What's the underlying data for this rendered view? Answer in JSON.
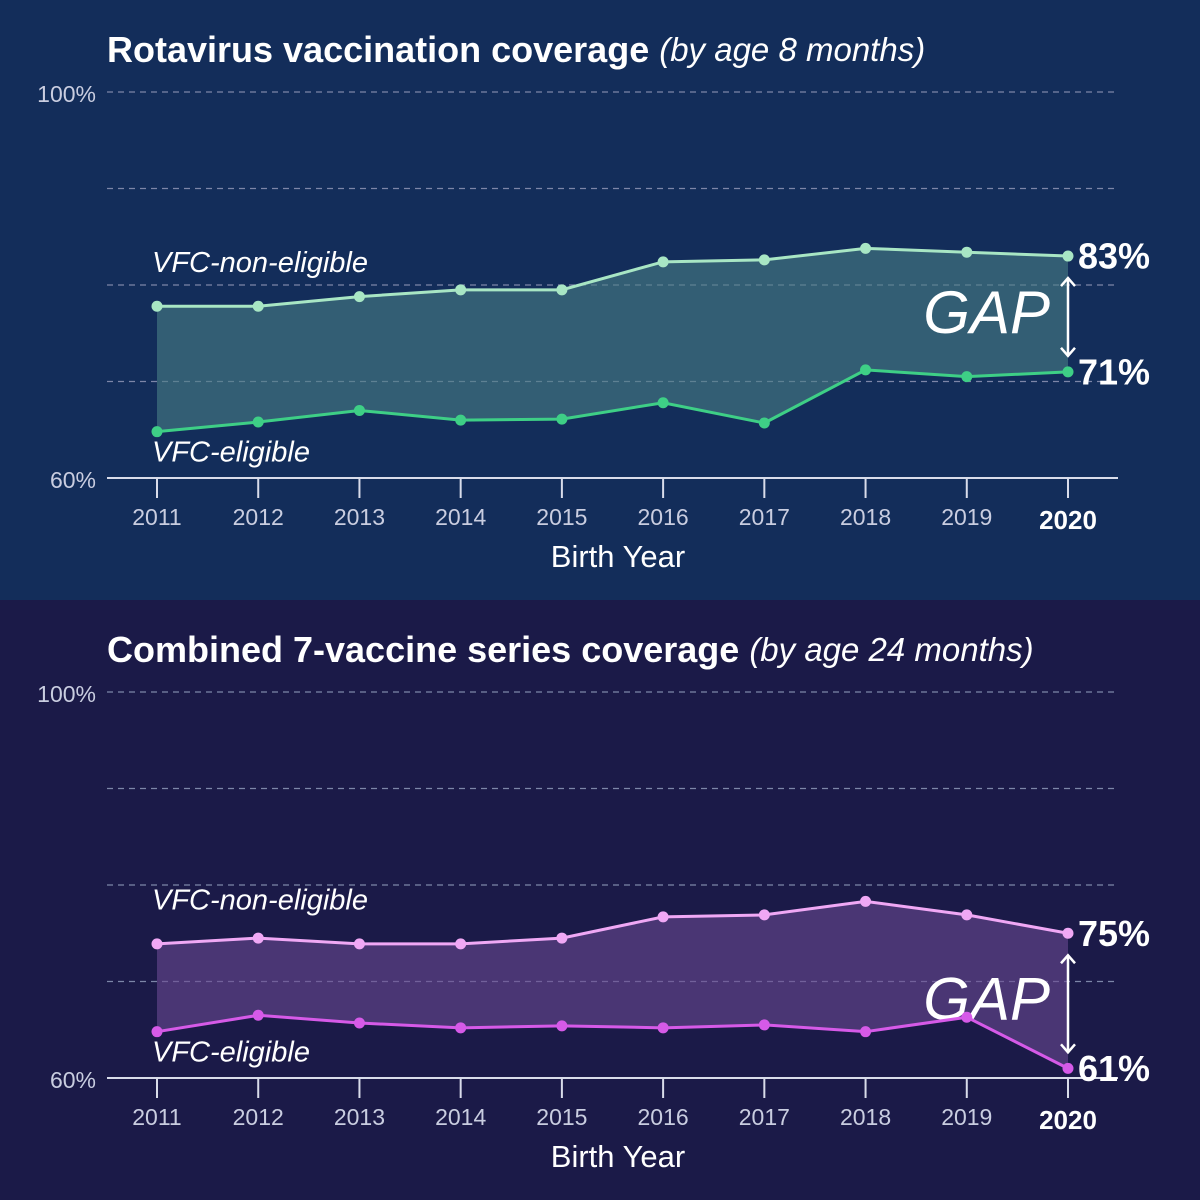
{
  "chart_data": [
    {
      "type": "line",
      "title": "Rotavirus vaccination coverage",
      "subtitle": "(by age 8 months)",
      "x_label": "Birth Year",
      "annotation": "GAP",
      "background": "#132d5a",
      "fill_color": "#4a7f86",
      "categories": [
        "2011",
        "2012",
        "2013",
        "2014",
        "2015",
        "2016",
        "2017",
        "2018",
        "2019",
        "2020"
      ],
      "ylim": [
        60,
        100
      ],
      "yticks": [
        {
          "value": 60,
          "label": "60%"
        },
        {
          "value": 70,
          "label": null
        },
        {
          "value": 80,
          "label": null
        },
        {
          "value": 90,
          "label": null
        },
        {
          "value": 100,
          "label": "100%"
        }
      ],
      "grid": true,
      "series": [
        {
          "name": "VFC-non-eligible",
          "color": "#a8e6c4",
          "values": [
            77.8,
            77.8,
            78.8,
            79.5,
            79.5,
            82.4,
            82.6,
            83.8,
            83.4,
            83
          ],
          "value_labels": [
            null,
            null,
            null,
            null,
            null,
            null,
            null,
            null,
            null,
            "83%"
          ]
        },
        {
          "name": "VFC-eligible",
          "color": "#3ecf86",
          "values": [
            64.8,
            65.8,
            67.0,
            66.0,
            66.1,
            67.8,
            65.7,
            71.2,
            70.5,
            71
          ],
          "value_labels": [
            null,
            null,
            null,
            null,
            null,
            null,
            null,
            null,
            null,
            "71%"
          ]
        }
      ]
    },
    {
      "type": "line",
      "title": "Combined 7-vaccine series coverage",
      "subtitle": "(by age 24 months)",
      "x_label": "Birth Year",
      "annotation": "GAP",
      "background": "#1b1a48",
      "fill_color": "#6a4a93",
      "categories": [
        "2011",
        "2012",
        "2013",
        "2014",
        "2015",
        "2016",
        "2017",
        "2018",
        "2019",
        "2020"
      ],
      "ylim": [
        60,
        100
      ],
      "yticks": [
        {
          "value": 60,
          "label": "60%"
        },
        {
          "value": 70,
          "label": null
        },
        {
          "value": 80,
          "label": null
        },
        {
          "value": 90,
          "label": null
        },
        {
          "value": 100,
          "label": "100%"
        }
      ],
      "grid": true,
      "series": [
        {
          "name": "VFC-non-eligible",
          "color": "#f0a8f5",
          "values": [
            73.9,
            74.5,
            73.9,
            73.9,
            74.5,
            76.7,
            76.9,
            78.3,
            76.9,
            75
          ],
          "value_labels": [
            null,
            null,
            null,
            null,
            null,
            null,
            null,
            null,
            null,
            "75%"
          ]
        },
        {
          "name": "VFC-eligible",
          "color": "#d65ae8",
          "values": [
            64.8,
            66.5,
            65.7,
            65.2,
            65.4,
            65.2,
            65.5,
            64.8,
            66.3,
            61
          ],
          "value_labels": [
            null,
            null,
            null,
            null,
            null,
            null,
            null,
            null,
            null,
            "61%"
          ]
        }
      ]
    }
  ]
}
